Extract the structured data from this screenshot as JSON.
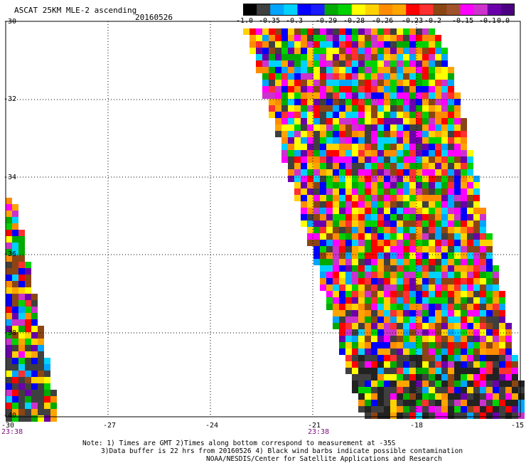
{
  "header": {
    "title": "ASCAT 25KM MLE-2 ascending",
    "date": "20160526"
  },
  "colorbar": {
    "colors": [
      "#000000",
      "#3f3f3f",
      "#00a5ff",
      "#00d2ff",
      "#0000ff",
      "#1a1aff",
      "#00aa00",
      "#00d200",
      "#ffff00",
      "#ffd200",
      "#ff8c00",
      "#ffa500",
      "#ff0000",
      "#ff3030",
      "#8b4513",
      "#a0522d",
      "#ff00ff",
      "#cc33cc",
      "#6a00aa",
      "#4b0082"
    ],
    "labels": [
      "-1.0",
      "-0.35",
      "-0.3",
      "-0.29",
      "-0.28",
      "-0.26",
      "-0.23",
      "-0.2",
      "-0.15",
      "-0.1",
      "0.0"
    ]
  },
  "map": {
    "lat_labels": [
      "-30",
      "-32",
      "-34",
      "-36",
      "-38",
      "-40"
    ],
    "lon_labels": [
      "-30",
      "-27",
      "-24",
      "-21",
      "-18",
      "-15"
    ],
    "swath_times": [
      "23:38",
      "23:38"
    ]
  },
  "footer": {
    "line1": "Note: 1) Times are GMT 2)Times along bottom correspond to measurement at -35S",
    "line2": "3)Data buffer is 22 hrs from 20160526 4) Black wind barbs indicate possible contamination",
    "line3": "NOAA/NESDIS/Center for Satellite Applications and Research"
  }
}
